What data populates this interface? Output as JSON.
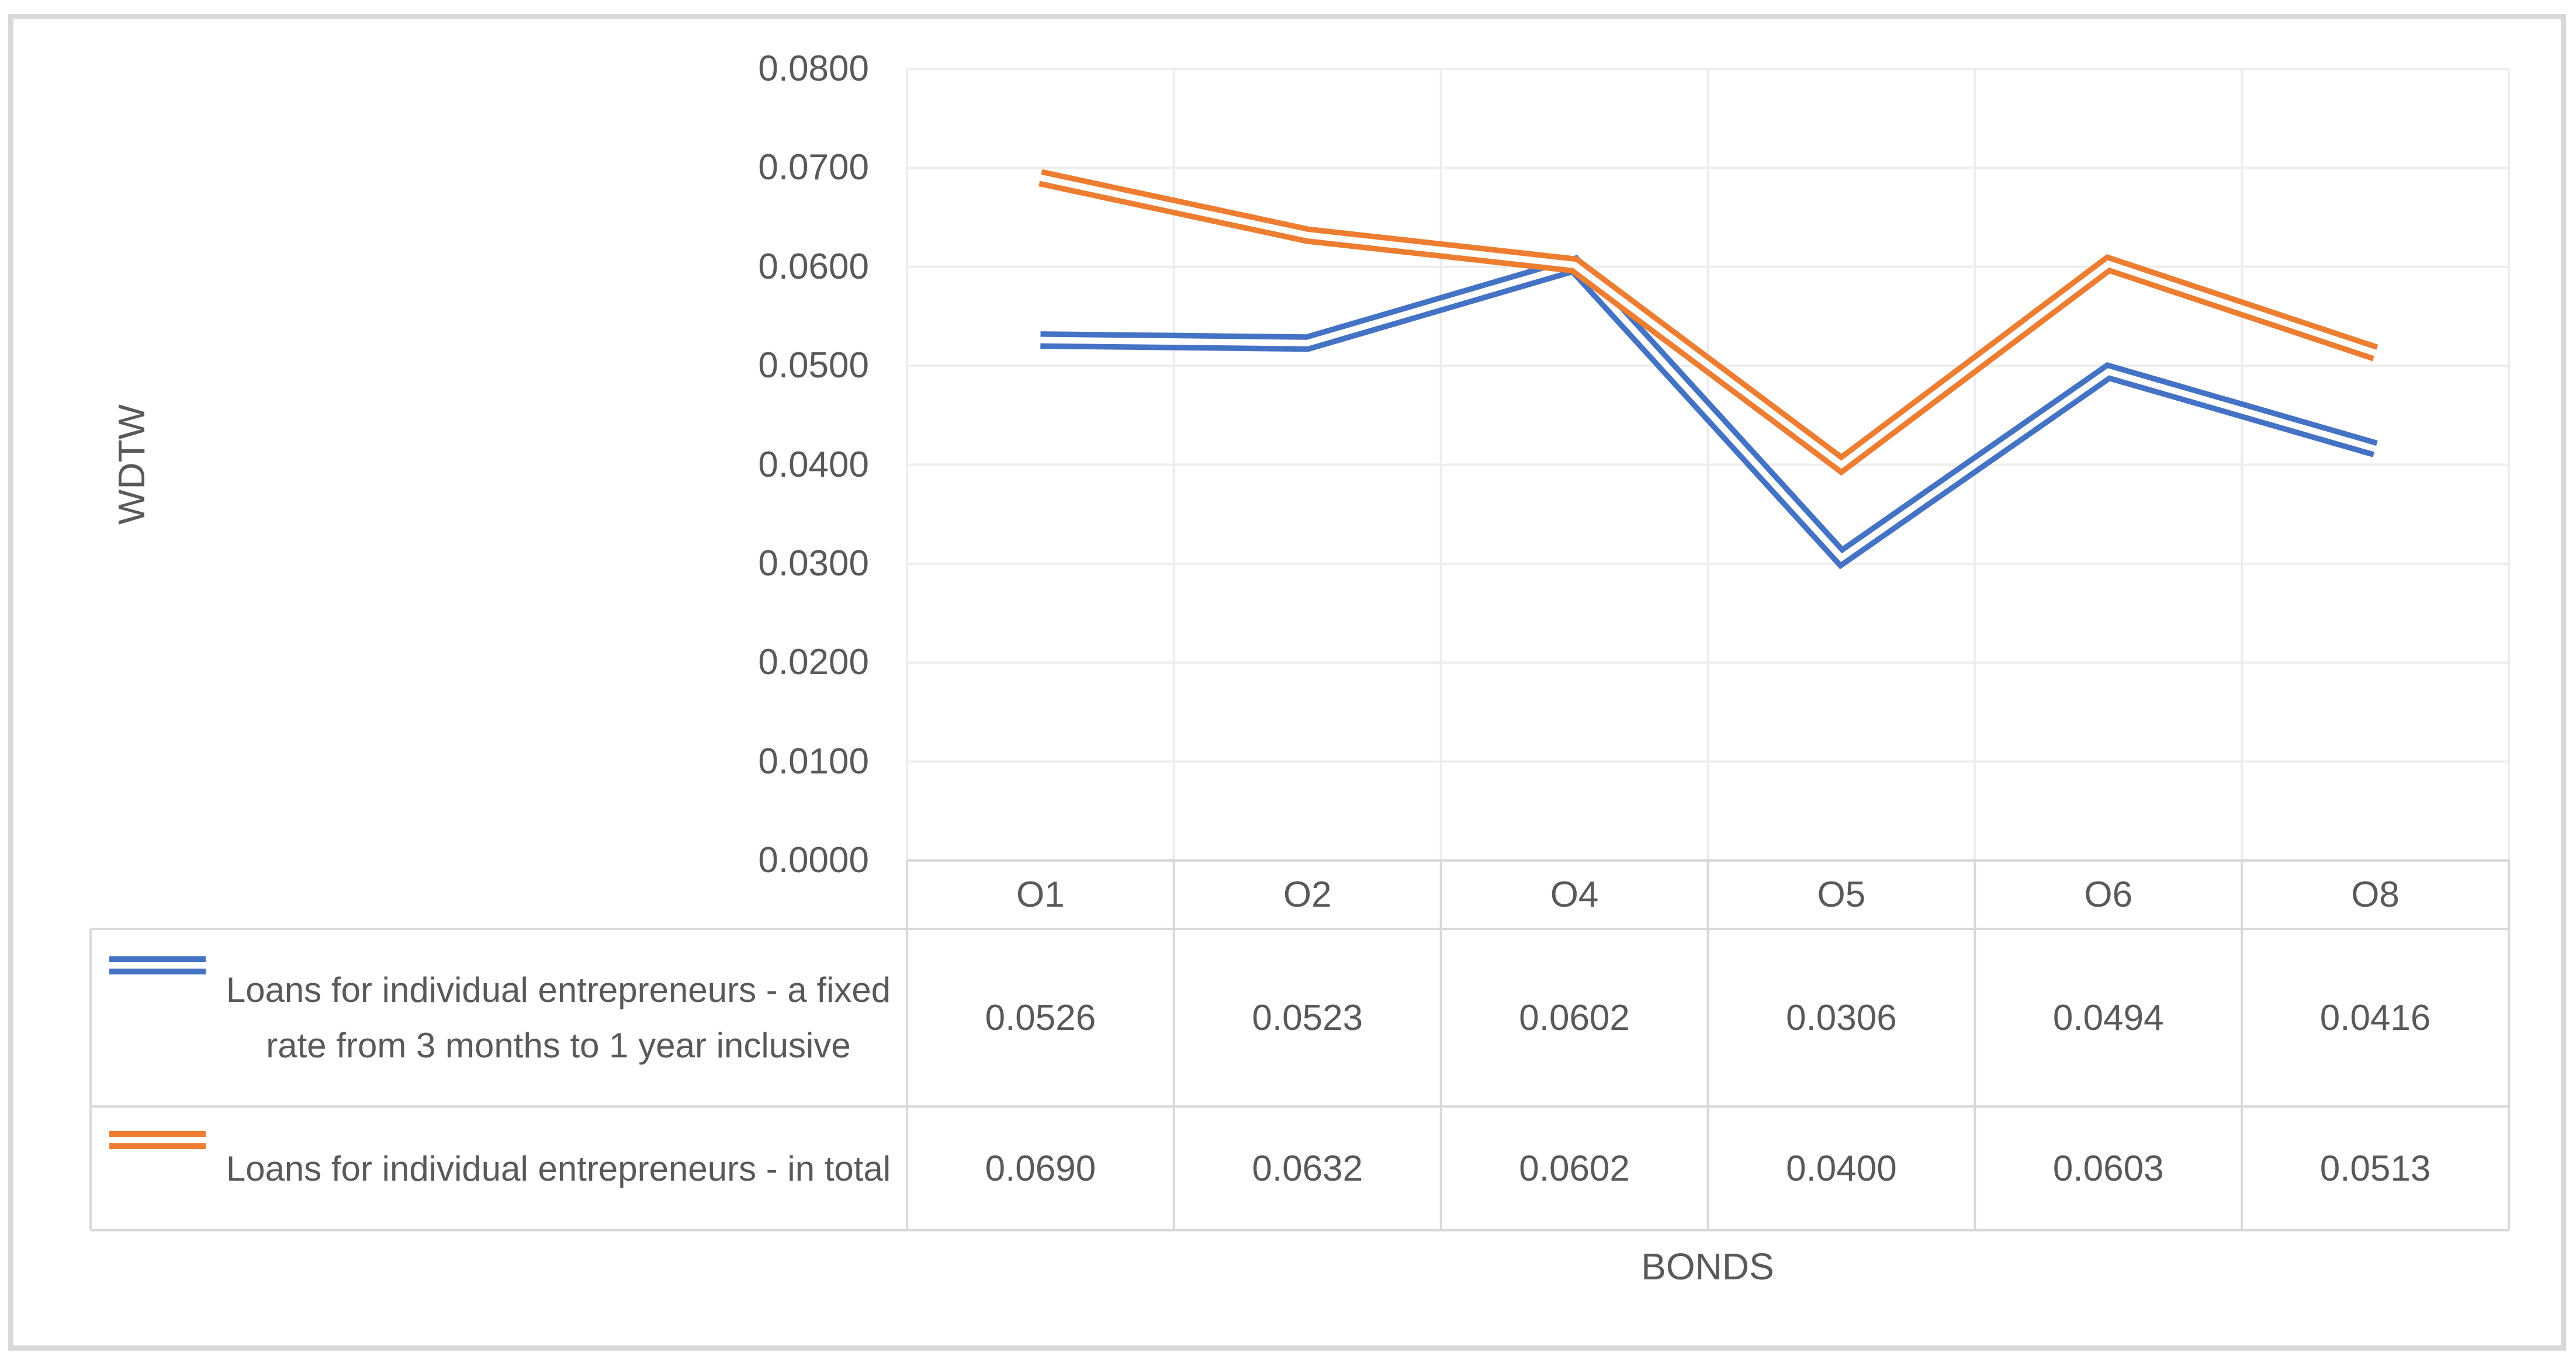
{
  "chart_data": {
    "type": "line",
    "title": "",
    "categories": [
      "O1",
      "O2",
      "O4",
      "O5",
      "O6",
      "O8"
    ],
    "series": [
      {
        "name": "Loans for individual entrepreneurs - a fixed rate from 3 months to 1 year inclusive",
        "color": "#4472C4",
        "values": [
          0.0526,
          0.0523,
          0.0602,
          0.0306,
          0.0494,
          0.0416
        ],
        "value_labels": [
          "0.0526",
          "0.0523",
          "0.0602",
          "0.0306",
          "0.0494",
          "0.0416"
        ]
      },
      {
        "name": "Loans for individual entrepreneurs - in total",
        "color": "#ED7D31",
        "values": [
          0.069,
          0.0632,
          0.0602,
          0.04,
          0.0603,
          0.0513
        ],
        "value_labels": [
          "0.0690",
          "0.0632",
          "0.0602",
          "0.0400",
          "0.0603",
          "0.0513"
        ]
      }
    ],
    "xlabel": "BONDS",
    "ylabel": "WDTW",
    "ylim": [
      0.0,
      0.08
    ],
    "ytick_labels": [
      "0.0800",
      "0.0700",
      "0.0600",
      "0.0500",
      "0.0400",
      "0.0300",
      "0.0200",
      "0.0100",
      "0.0000"
    ],
    "grid": true,
    "legend_position": "table-left",
    "line_style": "double",
    "colors": {
      "gridline": "#EDEDED",
      "table_border": "#D9D9D9",
      "text": "#595959",
      "chart_border": "#D9D9D9",
      "background": "#FFFFFF"
    }
  }
}
